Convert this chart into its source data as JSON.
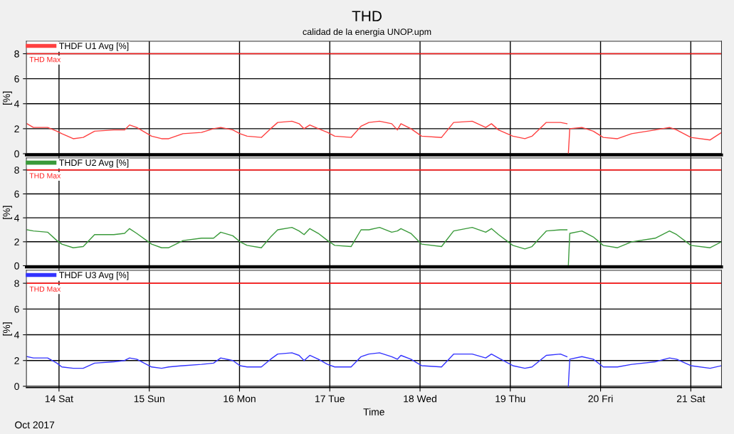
{
  "chart_data": [
    {
      "type": "line",
      "title": "THD",
      "subtitle": "calidad de la energia UNOP.upm",
      "ylabel": "[%]",
      "legend": "top left",
      "grid": true,
      "tick_labels": "y",
      "line_style": "solid",
      "marker": "none",
      "xlim": [
        "2017-10-13T15:20",
        "2017-10-21T08:10"
      ],
      "ylim": [
        -0.1,
        9
      ],
      "yticks": [
        0,
        2,
        4,
        6,
        8
      ],
      "xticks": [
        {
          "value": "2017-10-14",
          "label": null
        },
        {
          "value": "2017-10-15",
          "label": null
        },
        {
          "value": "2017-10-16",
          "label": null
        },
        {
          "value": "2017-10-17",
          "label": null
        },
        {
          "value": "2017-10-18",
          "label": null
        },
        {
          "value": "2017-10-19",
          "label": null
        },
        {
          "value": "2017-10-20",
          "label": null
        },
        {
          "value": "2017-10-21",
          "label": null
        }
      ],
      "ref_lines": [
        {
          "axis": "y",
          "value": 8,
          "label": "THD Max",
          "color": "#ff2020"
        }
      ],
      "x": [
        "2017-10-13T15:29",
        "2017-10-13T17:11",
        "2017-10-13T20:58",
        "2017-10-13T23:26",
        "2017-10-14T00:45",
        "2017-10-14T03:47",
        "2017-10-14T06:26",
        "2017-10-14T09:28",
        "2017-10-14T14:35",
        "2017-10-14T17:26",
        "2017-10-14T18:45",
        "2017-10-14T20:39",
        "2017-10-15T00:37",
        "2017-10-15T03:17",
        "2017-10-15T05:10",
        "2017-10-15T08:58",
        "2017-10-15T13:53",
        "2017-10-15T17:06",
        "2017-10-15T19:00",
        "2017-10-15T22:13",
        "2017-10-16T00:07",
        "2017-10-16T02:01",
        "2017-10-16T05:48",
        "2017-10-16T08:16",
        "2017-10-16T10:09",
        "2017-10-16T13:56",
        "2017-10-16T15:50",
        "2017-10-16T17:10",
        "2017-10-16T18:41",
        "2017-10-16T20:57",
        "2017-10-16T23:25",
        "2017-10-17T01:19",
        "2017-10-17T05:40",
        "2017-10-17T08:19",
        "2017-10-17T10:24",
        "2017-10-17T13:14",
        "2017-10-17T16:28",
        "2017-10-17T17:58",
        "2017-10-17T18:55",
        "2017-10-17T21:34",
        "2017-10-18T00:25",
        "2017-10-18T05:43",
        "2017-10-18T08:56",
        "2017-10-18T13:52",
        "2017-10-18T17:28",
        "2017-10-18T18:59",
        "2017-10-18T20:52",
        "2017-10-19T00:40",
        "2017-10-19T03:53",
        "2017-10-19T05:46",
        "2017-10-19T09:34",
        "2017-10-19T13:21",
        "2017-10-19T15:04",
        "2017-10-19T15:15",
        "2017-10-19T15:26",
        "2017-10-19T15:49",
        "2017-10-19T19:02",
        "2017-10-19T22:04",
        "2017-10-20T00:43",
        "2017-10-20T04:30",
        "2017-10-20T08:17",
        "2017-10-20T14:32",
        "2017-10-20T18:20",
        "2017-10-20T20:14",
        "2017-10-21T00:01",
        "2017-10-21T05:08",
        "2017-10-21T08:10"
      ],
      "series": [
        {
          "name": "THDF U1 Avg [%]",
          "color": "#ff4040",
          "values": [
            2.4,
            2.1,
            2.1,
            1.8,
            1.6,
            1.2,
            1.3,
            1.8,
            1.9,
            1.9,
            2.3,
            2.1,
            1.4,
            1.2,
            1.2,
            1.6,
            1.7,
            2.0,
            2.1,
            1.9,
            1.6,
            1.4,
            1.3,
            2.0,
            2.5,
            2.6,
            2.4,
            2.0,
            2.3,
            2.0,
            1.7,
            1.4,
            1.3,
            2.2,
            2.5,
            2.6,
            2.4,
            1.9,
            2.4,
            2.0,
            1.4,
            1.3,
            2.5,
            2.6,
            2.1,
            2.4,
            1.9,
            1.4,
            1.2,
            1.4,
            2.5,
            2.5,
            2.4,
            null,
            0,
            2.0,
            2.1,
            1.8,
            1.3,
            1.2,
            1.6,
            1.9,
            2.1,
            1.9,
            1.3,
            1.1,
            1.7
          ]
        }
      ]
    },
    {
      "type": "line",
      "ylabel": "[%]",
      "legend": "top left",
      "grid": true,
      "tick_labels": "y",
      "line_style": "solid",
      "marker": "none",
      "xlim": [
        "2017-10-13T15:20",
        "2017-10-21T08:10"
      ],
      "ylim": [
        -0.1,
        9
      ],
      "yticks": [
        0,
        2,
        4,
        6,
        8
      ],
      "ref_lines": [
        {
          "axis": "y",
          "value": 8,
          "label": "THD Max",
          "color": "#ff2020"
        }
      ],
      "xticks": [
        {
          "value": "2017-10-14",
          "label": null
        },
        {
          "value": "2017-10-15",
          "label": null
        },
        {
          "value": "2017-10-16",
          "label": null
        },
        {
          "value": "2017-10-17",
          "label": null
        },
        {
          "value": "2017-10-18",
          "label": null
        },
        {
          "value": "2017-10-19",
          "label": null
        },
        {
          "value": "2017-10-20",
          "label": null
        },
        {
          "value": "2017-10-21",
          "label": null
        }
      ],
      "x": [
        "2017-10-13T15:29",
        "2017-10-13T17:11",
        "2017-10-13T20:58",
        "2017-10-13T23:26",
        "2017-10-14T00:45",
        "2017-10-14T03:47",
        "2017-10-14T06:26",
        "2017-10-14T09:28",
        "2017-10-14T14:35",
        "2017-10-14T17:26",
        "2017-10-14T18:45",
        "2017-10-14T20:39",
        "2017-10-15T00:37",
        "2017-10-15T03:17",
        "2017-10-15T05:10",
        "2017-10-15T08:58",
        "2017-10-15T13:53",
        "2017-10-15T17:06",
        "2017-10-15T19:00",
        "2017-10-15T22:13",
        "2017-10-16T00:07",
        "2017-10-16T02:01",
        "2017-10-16T05:48",
        "2017-10-16T08:16",
        "2017-10-16T10:09",
        "2017-10-16T13:56",
        "2017-10-16T15:50",
        "2017-10-16T17:10",
        "2017-10-16T18:41",
        "2017-10-16T20:57",
        "2017-10-16T23:25",
        "2017-10-17T01:19",
        "2017-10-17T05:40",
        "2017-10-17T08:19",
        "2017-10-17T10:24",
        "2017-10-17T13:14",
        "2017-10-17T16:28",
        "2017-10-17T17:58",
        "2017-10-17T18:55",
        "2017-10-17T21:34",
        "2017-10-18T00:25",
        "2017-10-18T05:43",
        "2017-10-18T08:56",
        "2017-10-18T13:52",
        "2017-10-18T17:28",
        "2017-10-18T18:59",
        "2017-10-18T20:52",
        "2017-10-19T00:40",
        "2017-10-19T03:53",
        "2017-10-19T05:46",
        "2017-10-19T09:34",
        "2017-10-19T13:21",
        "2017-10-19T15:04",
        "2017-10-19T15:15",
        "2017-10-19T15:26",
        "2017-10-19T15:49",
        "2017-10-19T19:02",
        "2017-10-19T22:04",
        "2017-10-20T00:43",
        "2017-10-20T04:30",
        "2017-10-20T08:17",
        "2017-10-20T14:32",
        "2017-10-20T18:20",
        "2017-10-20T20:14",
        "2017-10-21T00:01",
        "2017-10-21T05:08",
        "2017-10-21T08:10"
      ],
      "series": [
        {
          "name": "THDF U2 Avg [%]",
          "color": "#3a9a3a",
          "values": [
            3.0,
            2.9,
            2.8,
            2.1,
            1.8,
            1.5,
            1.6,
            2.6,
            2.6,
            2.7,
            3.1,
            2.7,
            1.8,
            1.5,
            1.5,
            2.1,
            2.3,
            2.3,
            2.8,
            2.5,
            2.0,
            1.7,
            1.5,
            2.4,
            3.0,
            3.2,
            2.9,
            2.6,
            3.1,
            2.7,
            2.1,
            1.7,
            1.6,
            3.0,
            3.0,
            3.2,
            2.8,
            2.9,
            3.1,
            2.7,
            1.8,
            1.6,
            2.9,
            3.2,
            2.8,
            3.1,
            2.6,
            1.7,
            1.4,
            1.6,
            2.9,
            3.0,
            3.0,
            null,
            0,
            2.7,
            2.9,
            2.4,
            1.7,
            1.5,
            2.0,
            2.3,
            2.9,
            2.6,
            1.7,
            1.5,
            2.0
          ]
        }
      ]
    },
    {
      "type": "line",
      "xlabel": "Time",
      "ylabel": "[%]",
      "legend": "top left",
      "grid": true,
      "line_style": "solid",
      "marker": "none",
      "annotations": [
        "Oct 2017"
      ],
      "xlim": [
        "2017-10-13T15:20",
        "2017-10-21T08:10"
      ],
      "ylim": [
        -0.1,
        9
      ],
      "yticks": [
        0,
        2,
        4,
        6,
        8
      ],
      "xticks": [
        {
          "value": "2017-10-14",
          "label": "14 Sat"
        },
        {
          "value": "2017-10-15",
          "label": "15 Sun"
        },
        {
          "value": "2017-10-16",
          "label": "16 Mon"
        },
        {
          "value": "2017-10-17",
          "label": "17 Tue"
        },
        {
          "value": "2017-10-18",
          "label": "18 Wed"
        },
        {
          "value": "2017-10-19",
          "label": "19 Thu"
        },
        {
          "value": "2017-10-20",
          "label": "20 Fri"
        },
        {
          "value": "2017-10-21",
          "label": "21 Sat"
        }
      ],
      "ref_lines": [
        {
          "axis": "y",
          "value": 8,
          "label": "THD Max",
          "color": "#ff2020"
        }
      ],
      "x": [
        "2017-10-13T15:29",
        "2017-10-13T17:11",
        "2017-10-13T20:58",
        "2017-10-13T23:26",
        "2017-10-14T00:45",
        "2017-10-14T03:47",
        "2017-10-14T06:26",
        "2017-10-14T09:28",
        "2017-10-14T14:35",
        "2017-10-14T17:26",
        "2017-10-14T18:45",
        "2017-10-14T20:39",
        "2017-10-15T00:37",
        "2017-10-15T03:17",
        "2017-10-15T05:10",
        "2017-10-15T08:58",
        "2017-10-15T13:53",
        "2017-10-15T17:06",
        "2017-10-15T19:00",
        "2017-10-15T22:13",
        "2017-10-16T00:07",
        "2017-10-16T02:01",
        "2017-10-16T05:48",
        "2017-10-16T08:16",
        "2017-10-16T10:09",
        "2017-10-16T13:56",
        "2017-10-16T15:50",
        "2017-10-16T17:10",
        "2017-10-16T18:41",
        "2017-10-16T20:57",
        "2017-10-16T23:25",
        "2017-10-17T01:19",
        "2017-10-17T05:40",
        "2017-10-17T08:19",
        "2017-10-17T10:24",
        "2017-10-17T13:14",
        "2017-10-17T16:28",
        "2017-10-17T17:58",
        "2017-10-17T18:55",
        "2017-10-17T21:34",
        "2017-10-18T00:25",
        "2017-10-18T05:43",
        "2017-10-18T08:56",
        "2017-10-18T13:52",
        "2017-10-18T17:28",
        "2017-10-18T18:59",
        "2017-10-18T20:52",
        "2017-10-19T00:40",
        "2017-10-19T03:53",
        "2017-10-19T05:46",
        "2017-10-19T09:34",
        "2017-10-19T13:21",
        "2017-10-19T15:04",
        "2017-10-19T15:15",
        "2017-10-19T15:26",
        "2017-10-19T15:49",
        "2017-10-19T19:02",
        "2017-10-19T22:04",
        "2017-10-20T00:43",
        "2017-10-20T04:30",
        "2017-10-20T08:17",
        "2017-10-20T14:32",
        "2017-10-20T18:20",
        "2017-10-20T20:14",
        "2017-10-21T00:01",
        "2017-10-21T05:08",
        "2017-10-21T08:10"
      ],
      "series": [
        {
          "name": "THDF U3 Avg [%]",
          "color": "#3333ff",
          "values": [
            2.3,
            2.2,
            2.2,
            1.8,
            1.5,
            1.4,
            1.4,
            1.8,
            1.9,
            2.0,
            2.2,
            2.1,
            1.5,
            1.4,
            1.5,
            1.6,
            1.7,
            1.8,
            2.2,
            2.0,
            1.6,
            1.5,
            1.5,
            2.1,
            2.5,
            2.6,
            2.4,
            2.0,
            2.4,
            2.1,
            1.7,
            1.5,
            1.5,
            2.3,
            2.5,
            2.6,
            2.3,
            2.1,
            2.4,
            2.1,
            1.6,
            1.5,
            2.5,
            2.5,
            2.2,
            2.5,
            2.2,
            1.6,
            1.4,
            1.5,
            2.4,
            2.5,
            2.3,
            null,
            0,
            2.1,
            2.3,
            2.1,
            1.5,
            1.5,
            1.7,
            1.9,
            2.2,
            2.1,
            1.6,
            1.4,
            1.6
          ]
        }
      ]
    }
  ]
}
